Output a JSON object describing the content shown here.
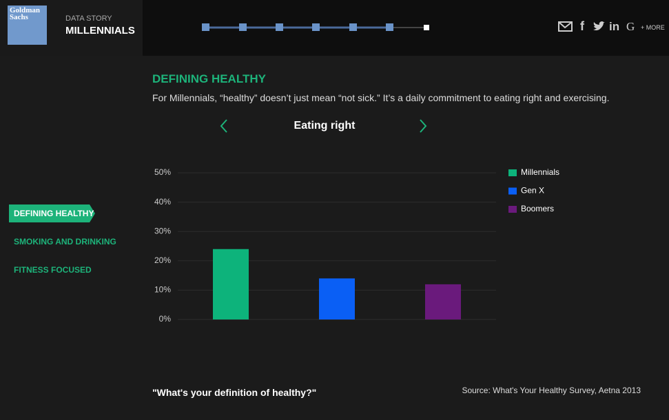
{
  "header": {
    "logo": "Goldman Sachs",
    "kicker": "DATA STORY",
    "title": "MILLENNIALS",
    "share": [
      "f",
      "in",
      "G",
      "+ MORE"
    ]
  },
  "nav": [
    "DEFINING HEALTHY",
    "SMOKING AND DRINKING",
    "FITNESS FOCUSED"
  ],
  "section": {
    "title": "DEFINING HEALTHY",
    "text": "For Millennials, “healthy” doesn’t just mean “not sick.” It’s a daily commitment to eating right and exercising.",
    "slide": "Eating right"
  },
  "chart_data": {
    "type": "bar",
    "series": [
      {
        "name": "Millennials",
        "color": "#0db37b",
        "values": [
          24
        ]
      },
      {
        "name": "Gen X",
        "color": "#0a5ff5",
        "values": [
          14
        ]
      },
      {
        "name": "Boomers",
        "color": "#6a1a7c",
        "values": [
          12
        ]
      }
    ],
    "ylim": [
      0,
      50
    ],
    "yticks": [
      {
        "value": 0,
        "label": "0%"
      },
      {
        "value": 10,
        "label": "10%"
      },
      {
        "value": 20,
        "label": "20%"
      },
      {
        "value": 30,
        "label": "30%"
      },
      {
        "value": 40,
        "label": "40%"
      },
      {
        "value": 50,
        "label": "50%"
      }
    ],
    "grid": true,
    "legend": "right"
  },
  "footer": {
    "question": "\"What's your definition of healthy?\"",
    "source": "Source: What's Your Healthy Survey, Aetna 2013"
  }
}
